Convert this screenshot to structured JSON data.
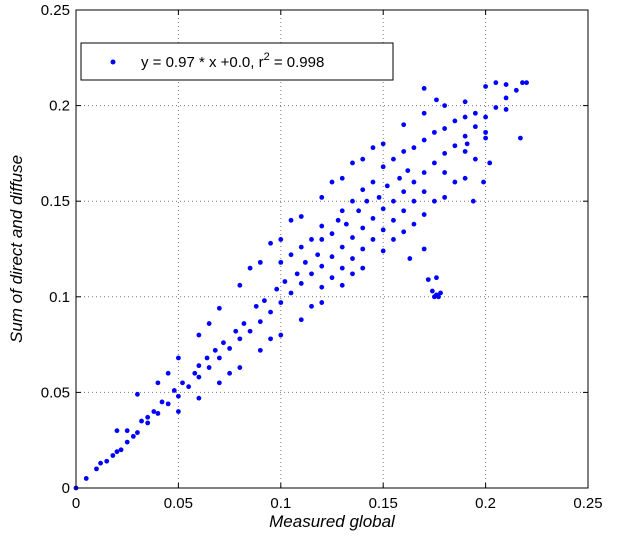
{
  "chart_data": {
    "type": "scatter",
    "title": "",
    "xlabel": "Measured global",
    "ylabel": "Sum of direct and diffuse",
    "xlim": [
      0,
      0.25
    ],
    "ylim": [
      0,
      0.25
    ],
    "xticks": [
      0,
      0.05,
      0.1,
      0.15,
      0.2,
      0.25
    ],
    "yticks": [
      0,
      0.05,
      0.1,
      0.15,
      0.2,
      0.25
    ],
    "xtick_labels": [
      "0",
      "0.05",
      "0.1",
      "0.15",
      "0.2",
      "0.25"
    ],
    "ytick_labels": [
      "0",
      "0.05",
      "0.1",
      "0.15",
      "0.2",
      "0.25"
    ],
    "grid": true,
    "legend_position": "top-left",
    "series": [
      {
        "name": "y = 0.97 * x +0.0, r² = 0.998",
        "color": "#0000ff",
        "marker": "dot",
        "fit": {
          "slope": 0.97,
          "intercept": 0.0,
          "r2": 0.998
        },
        "points": [
          [
            0.0,
            0.0
          ],
          [
            0.005,
            0.005
          ],
          [
            0.01,
            0.01
          ],
          [
            0.015,
            0.014
          ],
          [
            0.02,
            0.019
          ],
          [
            0.025,
            0.024
          ],
          [
            0.03,
            0.029
          ],
          [
            0.035,
            0.034
          ],
          [
            0.04,
            0.039
          ],
          [
            0.045,
            0.044
          ],
          [
            0.05,
            0.048
          ],
          [
            0.055,
            0.053
          ],
          [
            0.06,
            0.058
          ],
          [
            0.065,
            0.063
          ],
          [
            0.07,
            0.068
          ],
          [
            0.075,
            0.073
          ],
          [
            0.08,
            0.078
          ],
          [
            0.085,
            0.082
          ],
          [
            0.09,
            0.087
          ],
          [
            0.095,
            0.092
          ],
          [
            0.1,
            0.097
          ],
          [
            0.105,
            0.102
          ],
          [
            0.11,
            0.107
          ],
          [
            0.115,
            0.112
          ],
          [
            0.12,
            0.116
          ],
          [
            0.125,
            0.121
          ],
          [
            0.13,
            0.126
          ],
          [
            0.135,
            0.131
          ],
          [
            0.14,
            0.136
          ],
          [
            0.145,
            0.141
          ],
          [
            0.15,
            0.146
          ],
          [
            0.155,
            0.15
          ],
          [
            0.16,
            0.155
          ],
          [
            0.165,
            0.16
          ],
          [
            0.17,
            0.165
          ],
          [
            0.175,
            0.17
          ],
          [
            0.18,
            0.175
          ],
          [
            0.185,
            0.179
          ],
          [
            0.19,
            0.184
          ],
          [
            0.195,
            0.189
          ],
          [
            0.2,
            0.194
          ],
          [
            0.205,
            0.199
          ],
          [
            0.21,
            0.204
          ],
          [
            0.215,
            0.208
          ],
          [
            0.22,
            0.212
          ],
          [
            0.04,
            0.055
          ],
          [
            0.05,
            0.068
          ],
          [
            0.06,
            0.08
          ],
          [
            0.07,
            0.094
          ],
          [
            0.08,
            0.106
          ],
          [
            0.09,
            0.118
          ],
          [
            0.1,
            0.13
          ],
          [
            0.11,
            0.142
          ],
          [
            0.12,
            0.152
          ],
          [
            0.13,
            0.162
          ],
          [
            0.14,
            0.172
          ],
          [
            0.15,
            0.18
          ],
          [
            0.16,
            0.19
          ],
          [
            0.17,
            0.196
          ],
          [
            0.05,
            0.04
          ],
          [
            0.06,
            0.047
          ],
          [
            0.07,
            0.055
          ],
          [
            0.08,
            0.063
          ],
          [
            0.09,
            0.072
          ],
          [
            0.1,
            0.08
          ],
          [
            0.11,
            0.088
          ],
          [
            0.12,
            0.097
          ],
          [
            0.13,
            0.106
          ],
          [
            0.14,
            0.115
          ],
          [
            0.15,
            0.124
          ],
          [
            0.16,
            0.134
          ],
          [
            0.17,
            0.143
          ],
          [
            0.18,
            0.152
          ],
          [
            0.19,
            0.162
          ],
          [
            0.02,
            0.03
          ],
          [
            0.03,
            0.049
          ],
          [
            0.045,
            0.06
          ],
          [
            0.065,
            0.086
          ],
          [
            0.085,
            0.115
          ],
          [
            0.095,
            0.128
          ],
          [
            0.105,
            0.14
          ],
          [
            0.125,
            0.16
          ],
          [
            0.135,
            0.17
          ],
          [
            0.145,
            0.178
          ],
          [
            0.075,
            0.06
          ],
          [
            0.095,
            0.078
          ],
          [
            0.115,
            0.095
          ],
          [
            0.135,
            0.112
          ],
          [
            0.155,
            0.13
          ],
          [
            0.165,
            0.138
          ],
          [
            0.175,
            0.15
          ],
          [
            0.185,
            0.16
          ],
          [
            0.195,
            0.172
          ],
          [
            0.175,
            0.1
          ],
          [
            0.176,
            0.101
          ],
          [
            0.177,
            0.1
          ],
          [
            0.178,
            0.102
          ],
          [
            0.174,
            0.103
          ],
          [
            0.172,
            0.109
          ],
          [
            0.176,
            0.11
          ],
          [
            0.17,
            0.125
          ],
          [
            0.163,
            0.12
          ],
          [
            0.17,
            0.209
          ],
          [
            0.176,
            0.203
          ],
          [
            0.18,
            0.2
          ],
          [
            0.19,
            0.202
          ],
          [
            0.2,
            0.21
          ],
          [
            0.205,
            0.212
          ],
          [
            0.21,
            0.211
          ],
          [
            0.218,
            0.212
          ],
          [
            0.217,
            0.183
          ],
          [
            0.2,
            0.183
          ],
          [
            0.194,
            0.15
          ],
          [
            0.199,
            0.16
          ],
          [
            0.202,
            0.17
          ],
          [
            0.191,
            0.18
          ],
          [
            0.12,
            0.13
          ],
          [
            0.125,
            0.133
          ],
          [
            0.128,
            0.14
          ],
          [
            0.132,
            0.138
          ],
          [
            0.138,
            0.145
          ],
          [
            0.142,
            0.15
          ],
          [
            0.148,
            0.152
          ],
          [
            0.152,
            0.158
          ],
          [
            0.158,
            0.162
          ],
          [
            0.162,
            0.166
          ],
          [
            0.088,
            0.095
          ],
          [
            0.092,
            0.098
          ],
          [
            0.098,
            0.104
          ],
          [
            0.102,
            0.108
          ],
          [
            0.108,
            0.112
          ],
          [
            0.112,
            0.118
          ],
          [
            0.118,
            0.122
          ],
          [
            0.06,
            0.064
          ],
          [
            0.064,
            0.068
          ],
          [
            0.068,
            0.072
          ],
          [
            0.072,
            0.076
          ],
          [
            0.078,
            0.082
          ],
          [
            0.082,
            0.086
          ],
          [
            0.035,
            0.037
          ],
          [
            0.038,
            0.04
          ],
          [
            0.042,
            0.045
          ],
          [
            0.048,
            0.051
          ],
          [
            0.052,
            0.055
          ],
          [
            0.058,
            0.06
          ],
          [
            0.025,
            0.03
          ],
          [
            0.028,
            0.027
          ],
          [
            0.032,
            0.035
          ],
          [
            0.012,
            0.013
          ],
          [
            0.018,
            0.017
          ],
          [
            0.022,
            0.02
          ],
          [
            0.15,
            0.168
          ],
          [
            0.155,
            0.172
          ],
          [
            0.16,
            0.176
          ],
          [
            0.165,
            0.178
          ],
          [
            0.17,
            0.182
          ],
          [
            0.175,
            0.186
          ],
          [
            0.18,
            0.188
          ],
          [
            0.185,
            0.192
          ],
          [
            0.19,
            0.194
          ],
          [
            0.195,
            0.196
          ],
          [
            0.1,
            0.118
          ],
          [
            0.105,
            0.122
          ],
          [
            0.11,
            0.126
          ],
          [
            0.115,
            0.13
          ],
          [
            0.12,
            0.137
          ],
          [
            0.13,
            0.145
          ],
          [
            0.135,
            0.15
          ],
          [
            0.14,
            0.156
          ],
          [
            0.145,
            0.16
          ],
          [
            0.12,
            0.105
          ],
          [
            0.125,
            0.11
          ],
          [
            0.13,
            0.115
          ],
          [
            0.135,
            0.12
          ],
          [
            0.14,
            0.125
          ],
          [
            0.145,
            0.13
          ],
          [
            0.15,
            0.135
          ],
          [
            0.155,
            0.14
          ],
          [
            0.16,
            0.145
          ],
          [
            0.165,
            0.15
          ],
          [
            0.17,
            0.155
          ],
          [
            0.18,
            0.165
          ],
          [
            0.19,
            0.176
          ],
          [
            0.2,
            0.186
          ],
          [
            0.21,
            0.198
          ]
        ]
      }
    ]
  },
  "legend": {
    "prefix": "y = 0.97 * x +0.0, r",
    "superscript": "2",
    "suffix": " = 0.998"
  }
}
